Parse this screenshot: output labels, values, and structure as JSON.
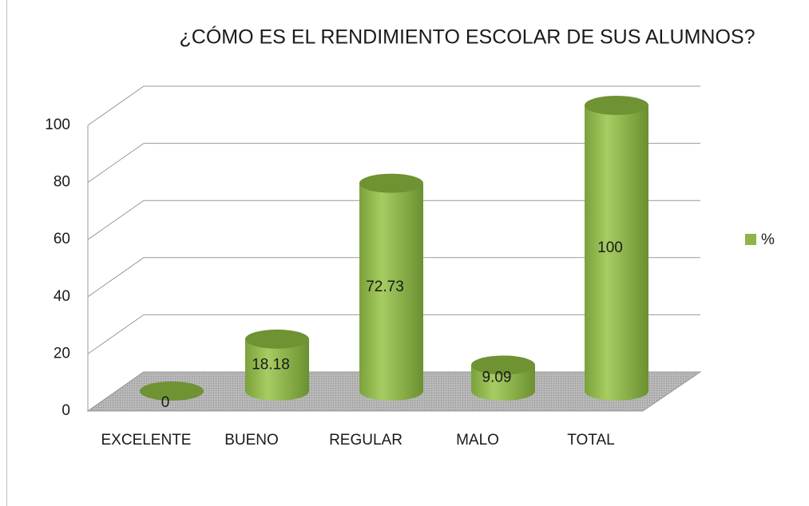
{
  "chart_data": {
    "type": "bar",
    "title": "¿CÓMO ES EL RENDIMIENTO ESCOLAR DE SUS ALUMNOS?",
    "categories": [
      "EXCELENTE",
      "BUENO",
      "REGULAR",
      "MALO",
      "TOTAL"
    ],
    "series": [
      {
        "name": "%",
        "color": "#8db54a",
        "values": [
          0,
          18.18,
          72.73,
          9.09,
          100
        ]
      }
    ],
    "ylim": [
      0,
      100
    ],
    "yticks": [
      0,
      20,
      40,
      60,
      80,
      100
    ],
    "grid": true,
    "legend": "right"
  }
}
